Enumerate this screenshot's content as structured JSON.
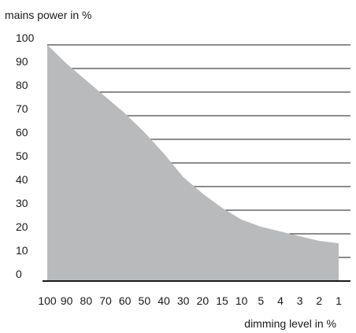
{
  "chart_data": {
    "type": "area",
    "title": "",
    "ylabel": "mains power in %",
    "xlabel": "dimming level in %",
    "categories": [
      "100",
      "90",
      "80",
      "70",
      "60",
      "50",
      "40",
      "30",
      "20",
      "15",
      "10",
      "5",
      "4",
      "3",
      "2",
      "1"
    ],
    "x_ticks": [
      "100",
      "90",
      "80",
      "70",
      "60",
      "50",
      "40",
      "30",
      "20",
      "15",
      "10",
      "5",
      "4",
      "3",
      "2",
      "1"
    ],
    "y_ticks": [
      "0",
      "10",
      "20",
      "30",
      "40",
      "50",
      "60",
      "70",
      "80",
      "90",
      "100"
    ],
    "ylim": [
      0,
      100
    ],
    "grid": true,
    "series": [
      {
        "values": [
          100,
          92,
          85,
          78,
          71,
          63,
          54,
          44,
          37,
          31,
          26,
          23,
          21,
          19,
          17,
          16
        ]
      }
    ],
    "colors": {
      "fill": "#b9babc",
      "grid": "#1a1a1a",
      "axis": "#1a1a1a",
      "text": "#1a1a1a"
    }
  }
}
